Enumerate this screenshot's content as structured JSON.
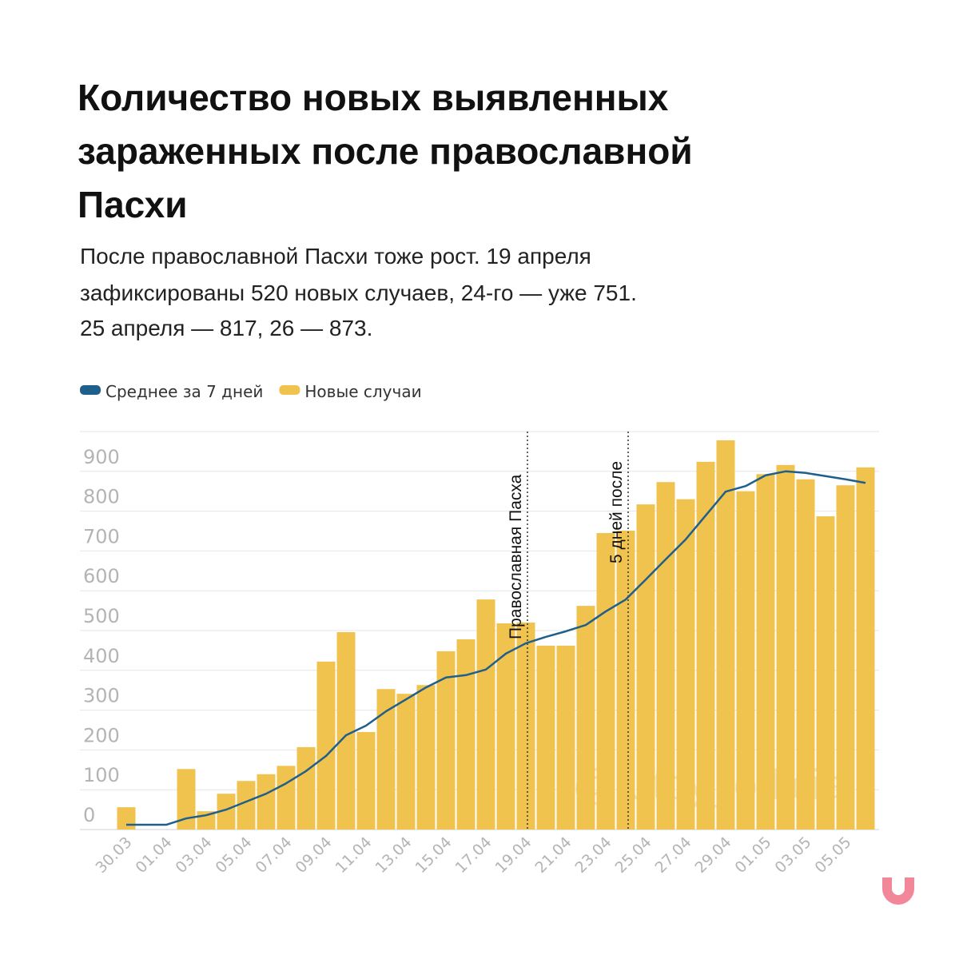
{
  "chart_data": {
    "type": "bar",
    "title": [
      "Количество новых выявленных",
      "зараженных после православной",
      "Пасхи"
    ],
    "subtitle": [
      "После православной Пасхи тоже рост. 19 апреля",
      "зафиксированы 520 новых случаев, 24-го — уже 751.",
      "25 апреля — 817, 26 — 873."
    ],
    "categories": [
      "30.03",
      null,
      "01.04",
      null,
      "03.04",
      null,
      "05.04",
      null,
      "07.04",
      null,
      "09.04",
      null,
      "11.04",
      null,
      "13.04",
      null,
      "15.04",
      null,
      "17.04",
      null,
      "19.04",
      null,
      "21.04",
      null,
      "23.04",
      null,
      "25.04",
      null,
      "27.04",
      null,
      "29.04",
      null,
      "01.05",
      null,
      "03.05",
      null,
      "05.05",
      null
    ],
    "series": [
      {
        "name": "Среднее за 7 дней",
        "color": "#1f5f8b",
        "type": "line",
        "values": [
          12,
          12,
          12,
          28,
          36,
          50,
          70,
          90,
          116,
          147,
          185,
          237,
          261,
          297,
          327,
          357,
          382,
          388,
          402,
          442,
          468,
          484,
          498,
          514,
          548,
          578,
          628,
          679,
          729,
          789,
          849,
          863,
          890,
          900,
          896,
          888,
          880,
          871
        ]
      },
      {
        "name": "Новые случаи",
        "color": "#f0c24e",
        "type": "bar",
        "values": [
          56,
          0,
          0,
          152,
          46,
          90,
          122,
          139,
          160,
          207,
          422,
          496,
          245,
          353,
          341,
          363,
          448,
          478,
          578,
          518,
          520,
          462,
          462,
          562,
          745,
          751,
          817,
          873,
          830,
          924,
          978,
          850,
          893,
          916,
          880,
          787,
          865,
          910
        ]
      }
    ],
    "ylim": [
      0,
      1000
    ],
    "yticks": [
      0,
      100,
      200,
      300,
      400,
      500,
      600,
      700,
      800,
      900
    ],
    "grid": true,
    "annotations": [
      "Православная Пасха",
      "5 дней после"
    ],
    "watermark": "@tutby_official"
  }
}
